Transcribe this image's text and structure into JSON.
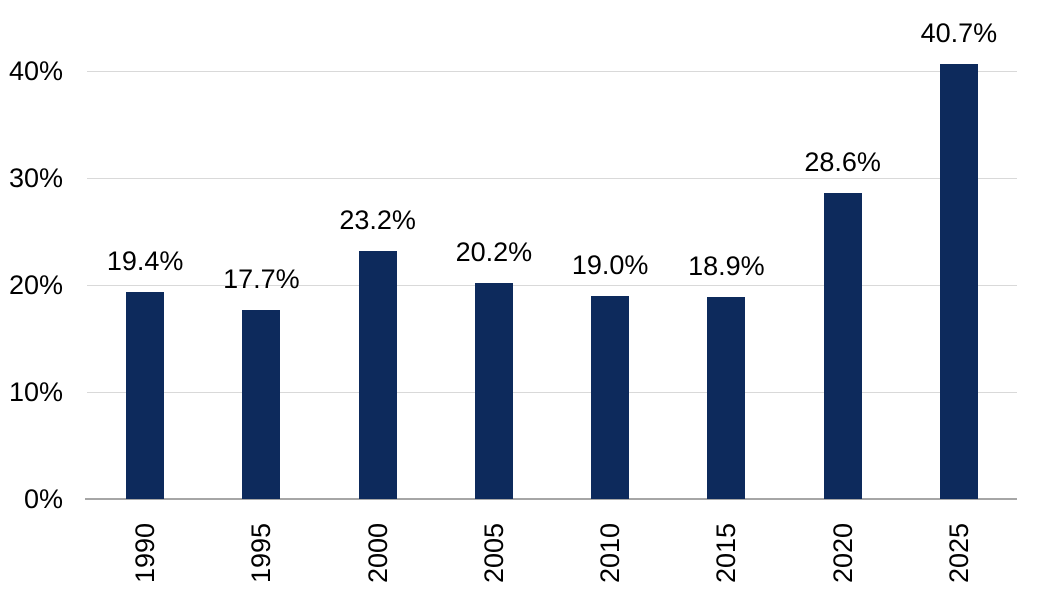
{
  "chart_data": {
    "type": "bar",
    "title": "",
    "xlabel": "",
    "ylabel": "",
    "categories": [
      "1990",
      "1995",
      "2000",
      "2005",
      "2010",
      "2015",
      "2020",
      "2025"
    ],
    "values": [
      19.4,
      17.7,
      23.2,
      20.2,
      19.0,
      18.9,
      28.6,
      40.7
    ],
    "data_labels": [
      "19.4%",
      "17.7%",
      "23.2%",
      "20.2%",
      "19.0%",
      "18.9%",
      "28.6%",
      "40.7%"
    ],
    "yticks": [
      0,
      10,
      20,
      30,
      40
    ],
    "ytick_labels": [
      "0%",
      "10%",
      "20%",
      "30%",
      "40%"
    ],
    "ylim": [
      0,
      45
    ],
    "grid": true,
    "legend": "none",
    "data_labels_position": "above-bars",
    "x_tick_rotation": -90,
    "colors": {
      "bar": "#0d2a5c",
      "gridline": "#d9d9d9",
      "axis_line": "#a6a6a6",
      "text": "#000000",
      "background": "#ffffff"
    }
  }
}
